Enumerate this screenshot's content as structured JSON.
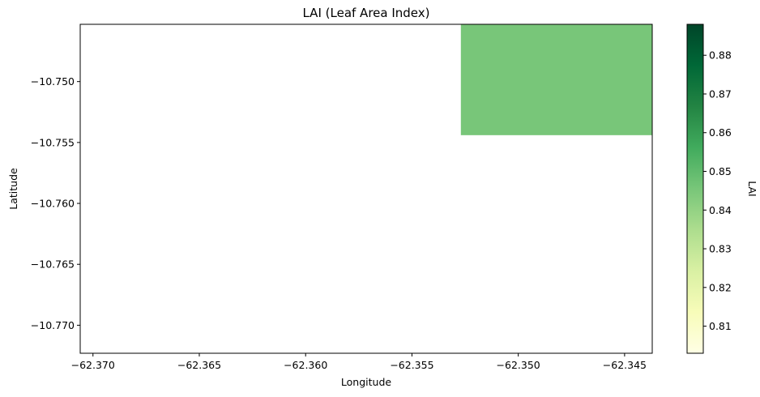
{
  "chart_data": {
    "type": "heatmap",
    "title": "LAI (Leaf Area Index)",
    "xlabel": "Longitude",
    "ylabel": "Latitude",
    "xlim": [
      -62.3706,
      -62.3437
    ],
    "ylim": [
      -10.7723,
      -10.7453
    ],
    "xticks": [
      -62.37,
      -62.365,
      -62.36,
      -62.355,
      -62.35,
      -62.345
    ],
    "xtick_labels": [
      "−62.370",
      "−62.365",
      "−62.360",
      "−62.355",
      "−62.350",
      "−62.345"
    ],
    "yticks": [
      -10.75,
      -10.755,
      -10.76,
      -10.765,
      -10.77
    ],
    "ytick_labels": [
      "−10.750",
      "−10.755",
      "−10.760",
      "−10.765",
      "−10.770"
    ],
    "cells": [
      {
        "lon_min": -62.3527,
        "lon_max": -62.3437,
        "lat_min": -10.7544,
        "lat_max": -10.7453,
        "value": 0.8455
      }
    ],
    "colorbar": {
      "label": "LAI",
      "colormap": "YlGn",
      "range": [
        0.803,
        0.888
      ],
      "ticks": [
        0.81,
        0.82,
        0.83,
        0.84,
        0.85,
        0.86,
        0.87,
        0.88
      ],
      "tick_labels": [
        "0.81",
        "0.82",
        "0.83",
        "0.84",
        "0.85",
        "0.86",
        "0.87",
        "0.88"
      ]
    },
    "grid": false,
    "legend": "none"
  },
  "colors": {
    "cell_fill": "#78c679",
    "colorbar_stops": [
      "#ffffe5",
      "#f7fcb9",
      "#d9f0a3",
      "#addd8e",
      "#78c679",
      "#41ab5d",
      "#238443",
      "#006837",
      "#004529"
    ]
  }
}
